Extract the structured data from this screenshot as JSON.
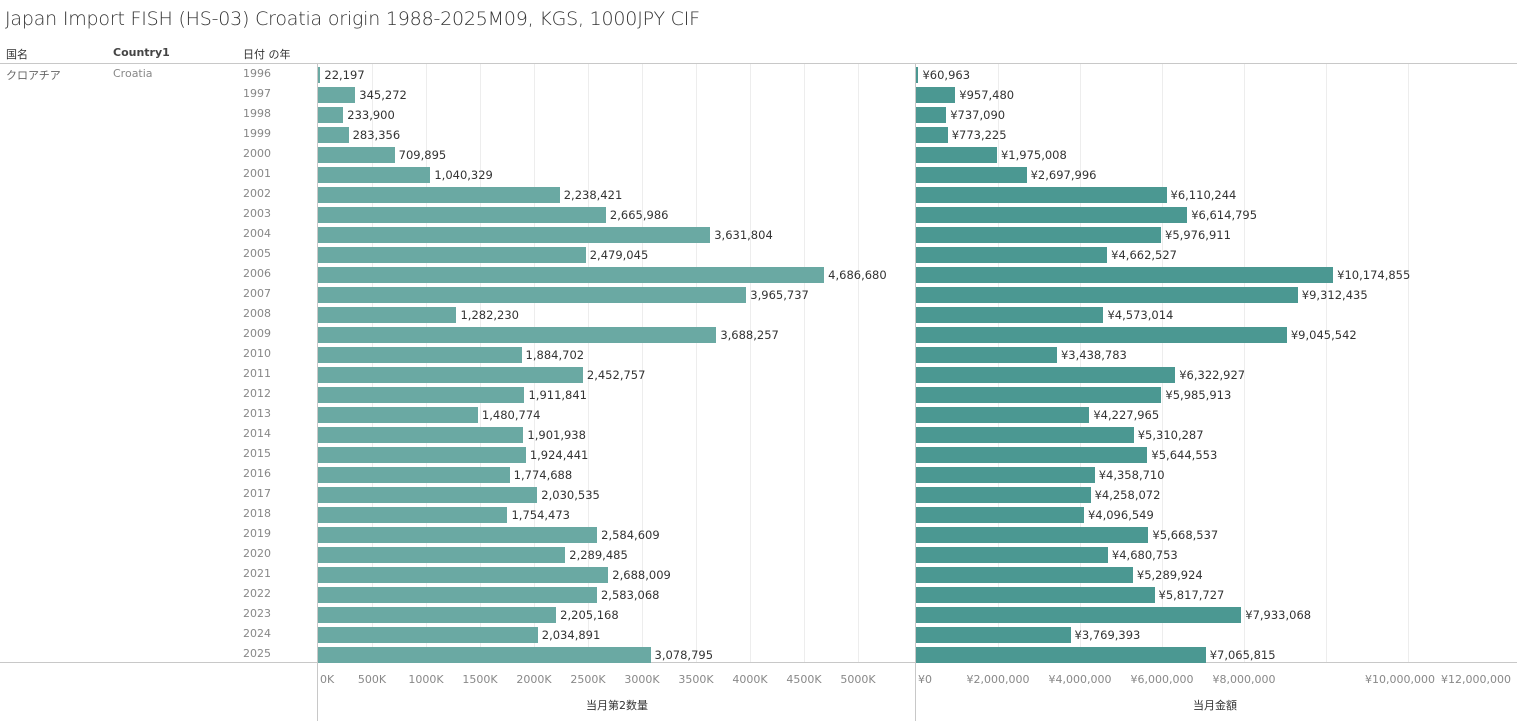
{
  "title": "Japan Import FISH (HS-03) Croatia origin 1988-2025M09, KGS, 1000JPY CIF",
  "headers": {
    "col1": "国名",
    "col2": "Country1",
    "col3": "日付 の年"
  },
  "row": {
    "country_jp": "クロアチア",
    "country_en": "Croatia"
  },
  "colors": {
    "left_bar": "#6aa9a3",
    "right_bar": "#4b9892"
  },
  "chart_data": [
    {
      "type": "bar",
      "orientation": "horizontal",
      "title": "",
      "xlabel": "当月第2数量",
      "ylabel": "日付 の年",
      "categories": [
        "1996",
        "1997",
        "1998",
        "1999",
        "2000",
        "2001",
        "2002",
        "2003",
        "2004",
        "2005",
        "2006",
        "2007",
        "2008",
        "2009",
        "2010",
        "2011",
        "2012",
        "2013",
        "2014",
        "2015",
        "2016",
        "2017",
        "2018",
        "2019",
        "2020",
        "2021",
        "2022",
        "2023",
        "2024",
        "2025"
      ],
      "values": [
        22197,
        345272,
        233900,
        283356,
        709895,
        1040329,
        2238421,
        2665986,
        3631804,
        2479045,
        4686680,
        3965737,
        1282230,
        3688257,
        1884702,
        2452757,
        1911841,
        1480774,
        1901938,
        1924441,
        1774688,
        2030535,
        1754473,
        2584609,
        2289485,
        2688009,
        2583068,
        2205168,
        2034891,
        3078795
      ],
      "labels": [
        "22,197",
        "345,272",
        "233,900",
        "283,356",
        "709,895",
        "1,040,329",
        "2,238,421",
        "2,665,986",
        "3,631,804",
        "2,479,045",
        "4,686,680",
        "3,965,737",
        "1,282,230",
        "3,688,257",
        "1,884,702",
        "2,452,757",
        "1,911,841",
        "1,480,774",
        "1,901,938",
        "1,924,441",
        "1,774,688",
        "2,030,535",
        "1,754,473",
        "2,584,609",
        "2,289,485",
        "2,688,009",
        "2,583,068",
        "2,205,168",
        "2,034,891",
        "3,078,795"
      ],
      "xlim": [
        0,
        5500000
      ],
      "ticks": [
        0,
        500000,
        1000000,
        1500000,
        2000000,
        2500000,
        3000000,
        3500000,
        4000000,
        4500000,
        5000000
      ],
      "tick_labels": [
        "0K",
        "500K",
        "1000K",
        "1500K",
        "2000K",
        "2500K",
        "3000K",
        "3500K",
        "4000K",
        "4500K",
        "5000K"
      ],
      "grid": true
    },
    {
      "type": "bar",
      "orientation": "horizontal",
      "title": "",
      "xlabel": "当月金額",
      "ylabel": "日付 の年",
      "categories": [
        "1996",
        "1997",
        "1998",
        "1999",
        "2000",
        "2001",
        "2002",
        "2003",
        "2004",
        "2005",
        "2006",
        "2007",
        "2008",
        "2009",
        "2010",
        "2011",
        "2012",
        "2013",
        "2014",
        "2015",
        "2016",
        "2017",
        "2018",
        "2019",
        "2020",
        "2021",
        "2022",
        "2023",
        "2024",
        "2025"
      ],
      "values": [
        60963,
        957480,
        737090,
        773225,
        1975008,
        2697996,
        6110244,
        6614795,
        5976911,
        4662527,
        10174855,
        9312435,
        4573014,
        9045542,
        3438783,
        6322927,
        5985913,
        4227965,
        5310287,
        5644553,
        4358710,
        4258072,
        4096549,
        5668537,
        4680753,
        5289924,
        5817727,
        7933068,
        3769393,
        7065815
      ],
      "labels": [
        "¥60,963",
        "¥957,480",
        "¥737,090",
        "¥773,225",
        "¥1,975,008",
        "¥2,697,996",
        "¥6,110,244",
        "¥6,614,795",
        "¥5,976,911",
        "¥4,662,527",
        "¥10,174,855",
        "¥9,312,435",
        "¥4,573,014",
        "¥9,045,542",
        "¥3,438,783",
        "¥6,322,927",
        "¥5,985,913",
        "¥4,227,965",
        "¥5,310,287",
        "¥5,644,553",
        "¥4,358,710",
        "¥4,258,072",
        "¥4,096,549",
        "¥5,668,537",
        "¥4,680,753",
        "¥5,289,924",
        "¥5,817,727",
        "¥7,933,068",
        "¥3,769,393",
        "¥7,065,815"
      ],
      "xlim": [
        0,
        14600000
      ],
      "ticks": [
        0,
        2000000,
        4000000,
        6000000,
        8000000,
        10000000,
        12000000
      ],
      "tick_labels": [
        "¥0",
        "¥2,000,000",
        "¥4,000,000",
        "¥6,000,000",
        "¥8,000,000",
        "¥10,000,000",
        "¥12,000,000"
      ],
      "grid": true
    }
  ]
}
